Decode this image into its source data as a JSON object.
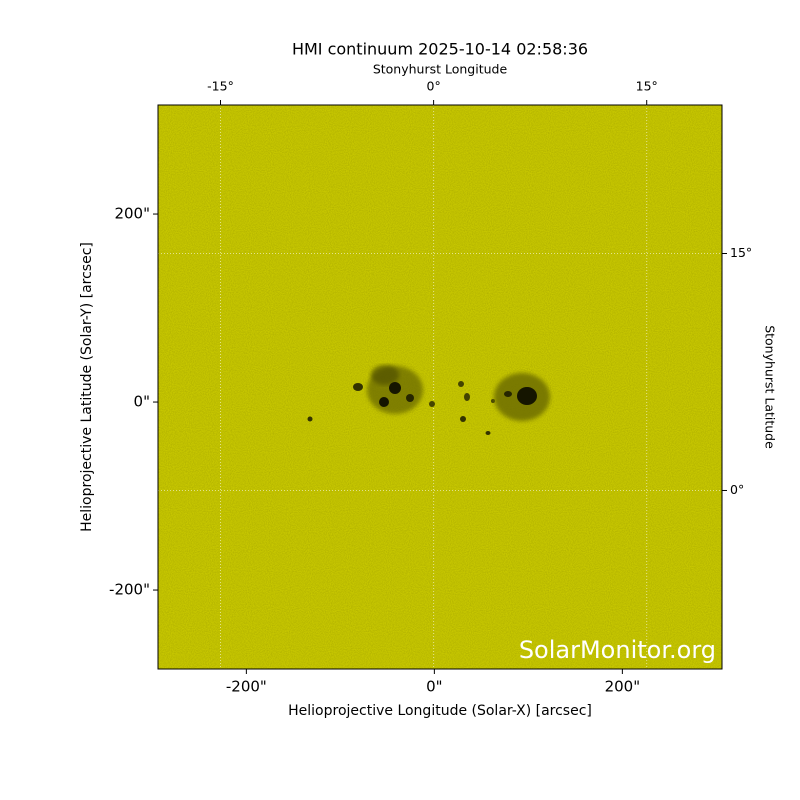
{
  "chart_data": {
    "type": "image",
    "title": "HMI continuum 2025-10-14 02:58:36",
    "xlabel": "Helioprojective Longitude (Solar-X) [arcsec]",
    "ylabel": "Helioprojective Latitude (Solar-Y) [arcsec]",
    "x2label": "Stonyhurst Longitude",
    "y2label": "Stonyhurst Latitude",
    "watermark": "SolarMonitor.org",
    "xlim": [
      -294,
      306
    ],
    "ylim": [
      -284,
      316
    ],
    "xticks": [
      {
        "value": -200,
        "label": "-200\""
      },
      {
        "value": 0,
        "label": "0\""
      },
      {
        "value": 200,
        "label": "200\""
      }
    ],
    "yticks": [
      {
        "value": -200,
        "label": "-200\""
      },
      {
        "value": 0,
        "label": "0\""
      },
      {
        "value": 200,
        "label": "200\""
      }
    ],
    "x2lim": [
      -19.4,
      20.3
    ],
    "x2ticks": [
      {
        "value": -15,
        "label": "-15°"
      },
      {
        "value": 0,
        "label": "0°"
      },
      {
        "value": 15,
        "label": "15°"
      }
    ],
    "y2lim": [
      -11.3,
      24.4
    ],
    "y2ticks": [
      {
        "value": 0,
        "label": "0°"
      },
      {
        "value": 15,
        "label": "15°"
      }
    ],
    "color": "#c8c800",
    "grid": true
  }
}
